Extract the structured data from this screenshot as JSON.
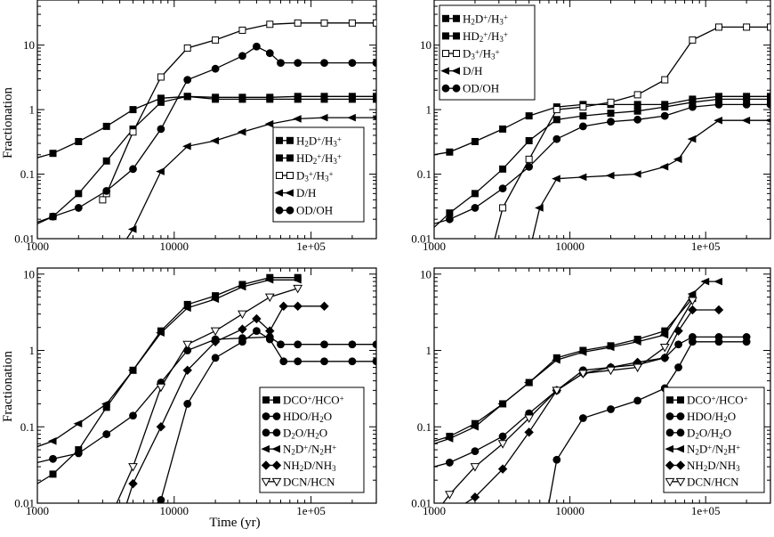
{
  "ylabel": "Fractionation",
  "xlabel": "Time (yr)",
  "chart_data": [
    {
      "type": "line",
      "xscale": "log",
      "yscale": "log",
      "xlim": [
        1000,
        300000
      ],
      "ylim": [
        0.01,
        50
      ],
      "xticks": [
        "1000",
        "10000",
        "1e+05"
      ],
      "yticks": [
        "0.01",
        "0.1",
        "1",
        "10"
      ],
      "ylabel": "Fractionation",
      "xlabel": "",
      "legend": "bottom-right",
      "series": [
        {
          "name": "H2D+/H3+",
          "marker": "square-filled",
          "x": [
            1000,
            1300,
            2000,
            3200,
            5000,
            8000,
            12500,
            20000,
            31500,
            50000,
            80000,
            125000,
            200000,
            300000
          ],
          "y": [
            0.18,
            0.21,
            0.32,
            0.55,
            1.0,
            1.5,
            1.6,
            1.55,
            1.55,
            1.55,
            1.6,
            1.6,
            1.6,
            1.6
          ]
        },
        {
          "name": "HD2+/H3+",
          "marker": "square-filled",
          "x": [
            1000,
            1300,
            2000,
            3200,
            5000,
            8000,
            12500,
            20000,
            31500,
            50000,
            80000,
            125000,
            200000,
            300000
          ],
          "y": [
            0.017,
            0.022,
            0.05,
            0.16,
            0.5,
            1.3,
            1.6,
            1.45,
            1.45,
            1.45,
            1.45,
            1.45,
            1.45,
            1.45
          ]
        },
        {
          "name": "D3+/H3+",
          "marker": "square-open",
          "x": [
            3000,
            3200,
            5000,
            8000,
            12500,
            20000,
            31500,
            50000,
            80000,
            125000,
            200000,
            300000
          ],
          "y": [
            0.04,
            0.05,
            0.45,
            3.2,
            9.0,
            12.0,
            17.0,
            21.0,
            22.0,
            22.0,
            22.0,
            22.0
          ]
        },
        {
          "name": "D/H",
          "marker": "triangle-left-filled",
          "x": [
            4500,
            5000,
            8000,
            12500,
            20000,
            31500,
            50000,
            80000,
            125000,
            200000,
            300000
          ],
          "y": [
            0.01,
            0.014,
            0.11,
            0.27,
            0.33,
            0.45,
            0.6,
            0.72,
            0.75,
            0.75,
            0.75
          ]
        },
        {
          "name": "OD/OH",
          "marker": "circle-filled",
          "x": [
            1000,
            1300,
            2000,
            3200,
            5000,
            8000,
            12500,
            20000,
            31500,
            40000,
            50000,
            60000,
            80000,
            125000,
            200000,
            300000
          ],
          "y": [
            0.018,
            0.022,
            0.03,
            0.055,
            0.12,
            0.5,
            2.9,
            4.3,
            6.8,
            9.5,
            7.5,
            5.3,
            5.3,
            5.3,
            5.3,
            5.3
          ]
        }
      ]
    },
    {
      "type": "line",
      "xscale": "log",
      "yscale": "log",
      "xlim": [
        1000,
        300000
      ],
      "ylim": [
        0.01,
        50
      ],
      "xticks": [
        "1000",
        "10000",
        "1e+05"
      ],
      "yticks": [
        "0.01",
        "0.1",
        "1",
        "10"
      ],
      "ylabel": "",
      "xlabel": "",
      "legend": "top-left",
      "series": [
        {
          "name": "H2D+/H3+",
          "marker": "square-filled",
          "x": [
            1000,
            1300,
            2000,
            3200,
            5000,
            8000,
            12500,
            20000,
            31500,
            50000,
            80000,
            125000,
            200000,
            300000
          ],
          "y": [
            0.2,
            0.22,
            0.32,
            0.5,
            0.8,
            1.1,
            1.2,
            1.2,
            1.2,
            1.2,
            1.45,
            1.6,
            1.6,
            1.6
          ]
        },
        {
          "name": "HD2+/H3+",
          "marker": "square-filled",
          "x": [
            1000,
            1300,
            2000,
            3200,
            5000,
            8000,
            12500,
            20000,
            31500,
            50000,
            80000,
            125000,
            200000,
            300000
          ],
          "y": [
            0.015,
            0.025,
            0.05,
            0.12,
            0.33,
            0.7,
            0.8,
            0.88,
            0.95,
            1.1,
            1.3,
            1.45,
            1.45,
            1.45
          ]
        },
        {
          "name": "D3+/H3+",
          "marker": "square-open",
          "x": [
            2800,
            3200,
            5000,
            8000,
            12500,
            20000,
            31500,
            50000,
            80000,
            125000,
            200000,
            300000
          ],
          "y": [
            0.01,
            0.03,
            0.17,
            1.0,
            1.1,
            1.3,
            1.7,
            2.9,
            12.0,
            19.0,
            19.0,
            19.0
          ]
        },
        {
          "name": "D/H",
          "marker": "triangle-left-filled",
          "x": [
            5300,
            6000,
            8000,
            12500,
            20000,
            31500,
            50000,
            63000,
            80000,
            125000,
            200000,
            300000
          ],
          "y": [
            0.01,
            0.03,
            0.085,
            0.09,
            0.095,
            0.1,
            0.13,
            0.17,
            0.35,
            0.68,
            0.68,
            0.68
          ]
        },
        {
          "name": "OD/OH",
          "marker": "circle-filled",
          "x": [
            1000,
            1300,
            2000,
            3200,
            5000,
            8000,
            12500,
            20000,
            31500,
            50000,
            80000,
            125000,
            200000,
            300000
          ],
          "y": [
            0.017,
            0.02,
            0.03,
            0.06,
            0.13,
            0.35,
            0.55,
            0.65,
            0.7,
            0.8,
            1.1,
            1.2,
            1.2,
            1.2
          ]
        }
      ]
    },
    {
      "type": "line",
      "xscale": "log",
      "yscale": "log",
      "xlim": [
        1000,
        300000
      ],
      "ylim": [
        0.01,
        12
      ],
      "xticks": [
        "1000",
        "10000",
        "1e+05"
      ],
      "yticks": [
        "0.01",
        "0.1",
        "1",
        "10"
      ],
      "ylabel": "Fractionation",
      "xlabel": "Time (yr)",
      "legend": "bottom-right",
      "series": [
        {
          "name": "DCO+/HCO+",
          "marker": "square-filled",
          "x": [
            1000,
            1300,
            2000,
            3200,
            5000,
            8000,
            12500,
            20000,
            31500,
            50000,
            80000
          ],
          "y": [
            0.018,
            0.024,
            0.05,
            0.18,
            0.55,
            1.8,
            4.0,
            5.2,
            7.3,
            9.0,
            9.0
          ]
        },
        {
          "name": "HDO/H2O",
          "marker": "circle-filled",
          "x": [
            1000,
            1300,
            2000,
            3200,
            5000,
            8000,
            12500,
            20000,
            31500,
            50000,
            60000,
            80000,
            125000,
            200000,
            300000
          ],
          "y": [
            0.034,
            0.038,
            0.045,
            0.08,
            0.14,
            0.38,
            1.0,
            1.4,
            1.45,
            1.5,
            1.2,
            1.2,
            1.2,
            1.2,
            1.2
          ]
        },
        {
          "name": "D2O/H2O",
          "marker": "circle-filled",
          "x": [
            7500,
            8000,
            12500,
            20000,
            31500,
            40000,
            50000,
            63000,
            80000,
            125000,
            200000,
            300000
          ],
          "y": [
            0.01,
            0.011,
            0.2,
            0.8,
            1.3,
            1.8,
            1.4,
            0.72,
            0.72,
            0.72,
            0.72,
            0.72
          ]
        },
        {
          "name": "N2D+/N2H+",
          "marker": "triangle-left-filled",
          "x": [
            1000,
            1300,
            2000,
            3200,
            5000,
            8000,
            12500,
            20000,
            31500,
            50000,
            80000
          ],
          "y": [
            0.055,
            0.065,
            0.11,
            0.2,
            0.55,
            1.7,
            3.6,
            4.7,
            6.8,
            8.4,
            8.4
          ]
        },
        {
          "name": "NH2D/NH3",
          "marker": "diamond-filled",
          "x": [
            4500,
            5000,
            8000,
            12500,
            20000,
            31500,
            40000,
            50000,
            63000,
            80000,
            125000
          ],
          "y": [
            0.01,
            0.018,
            0.1,
            0.55,
            1.3,
            1.9,
            2.6,
            1.8,
            3.8,
            3.8,
            3.8
          ]
        },
        {
          "name": "DCN/HCN",
          "marker": "triangle-down-open",
          "x": [
            3800,
            5000,
            8000,
            12500,
            20000,
            31500,
            50000,
            80000
          ],
          "y": [
            0.01,
            0.03,
            0.33,
            1.2,
            1.8,
            3.0,
            5.0,
            6.5
          ]
        }
      ]
    },
    {
      "type": "line",
      "xscale": "log",
      "yscale": "log",
      "xlim": [
        1000,
        300000
      ],
      "ylim": [
        0.01,
        12
      ],
      "xticks": [
        "1000",
        "10000",
        "1e+05"
      ],
      "yticks": [
        "0.01",
        "0.1",
        "1",
        "10"
      ],
      "ylabel": "",
      "xlabel": "",
      "legend": "bottom-right",
      "series": [
        {
          "name": "DCO+/HCO+",
          "marker": "square-filled",
          "x": [
            1000,
            1300,
            2000,
            3200,
            5000,
            8000,
            12500,
            20000,
            31500,
            50000,
            80000
          ],
          "y": [
            0.065,
            0.075,
            0.11,
            0.2,
            0.38,
            0.8,
            1.0,
            1.15,
            1.4,
            1.8,
            4.8
          ]
        },
        {
          "name": "HDO/H2O",
          "marker": "circle-filled",
          "x": [
            1000,
            1300,
            2000,
            3200,
            5000,
            8000,
            12500,
            20000,
            31500,
            50000,
            63000,
            80000,
            125000,
            200000
          ],
          "y": [
            0.03,
            0.034,
            0.048,
            0.075,
            0.15,
            0.3,
            0.55,
            0.6,
            0.65,
            0.8,
            1.2,
            1.5,
            1.5,
            1.5
          ]
        },
        {
          "name": "D2O/H2O",
          "marker": "circle-filled",
          "x": [
            7000,
            8000,
            12500,
            20000,
            31500,
            50000,
            63000,
            80000,
            125000,
            200000
          ],
          "y": [
            0.01,
            0.037,
            0.13,
            0.17,
            0.22,
            0.32,
            0.6,
            1.3,
            1.3,
            1.3
          ]
        },
        {
          "name": "N2D+/N2H+",
          "marker": "triangle-left-filled",
          "x": [
            1000,
            1300,
            2000,
            3200,
            5000,
            8000,
            12500,
            20000,
            31500,
            50000,
            80000,
            100000,
            125000
          ],
          "y": [
            0.06,
            0.07,
            0.1,
            0.2,
            0.38,
            0.75,
            0.95,
            1.1,
            1.3,
            1.6,
            5.5,
            8.0,
            8.0
          ]
        },
        {
          "name": "NH2D/NH3",
          "marker": "diamond-filled",
          "x": [
            1700,
            2000,
            3200,
            5000,
            8000,
            12500,
            20000,
            31500,
            50000,
            63000,
            80000,
            125000
          ],
          "y": [
            0.01,
            0.012,
            0.028,
            0.085,
            0.3,
            0.5,
            0.6,
            0.7,
            0.8,
            1.8,
            3.4,
            3.4
          ]
        },
        {
          "name": "DCN/HCN",
          "marker": "triangle-down-open",
          "x": [
            1000,
            1300,
            2000,
            3200,
            5000,
            8000,
            12500,
            20000,
            31500,
            50000,
            80000
          ],
          "y": [
            0.007,
            0.013,
            0.03,
            0.06,
            0.13,
            0.3,
            0.5,
            0.55,
            0.6,
            1.1,
            4.5
          ]
        }
      ]
    }
  ]
}
